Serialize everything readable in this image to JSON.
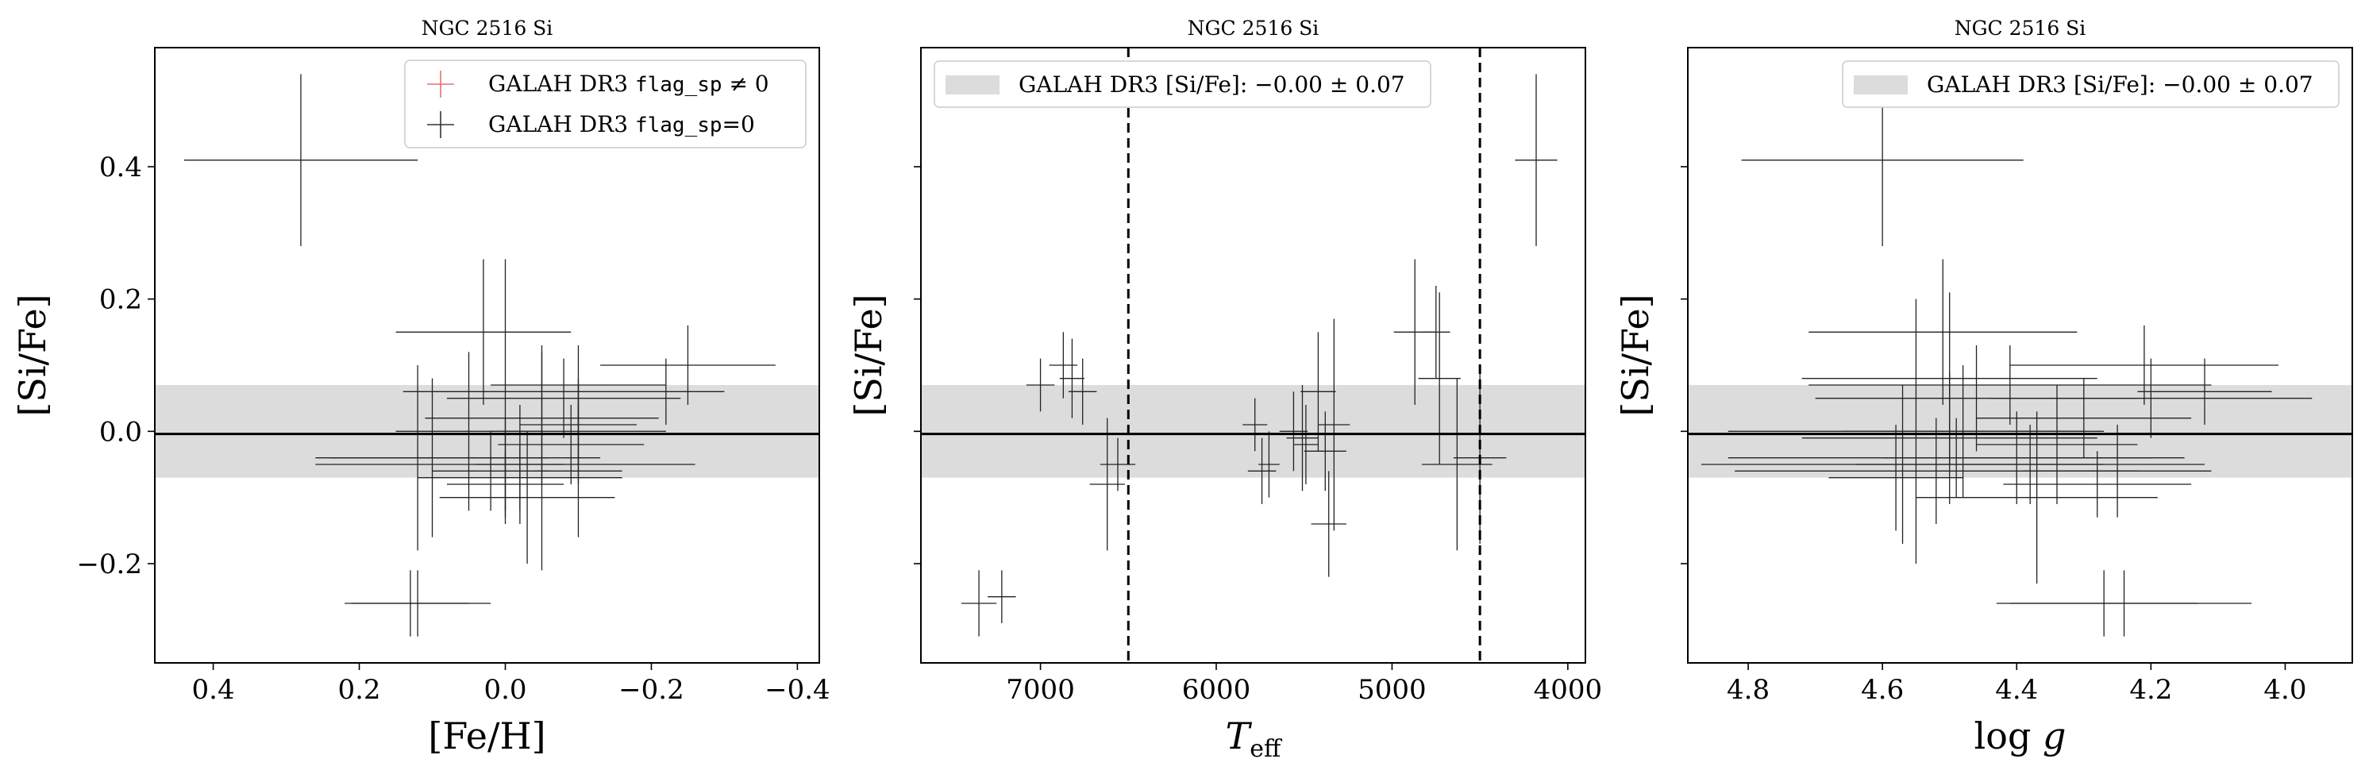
{
  "chart_data": [
    {
      "type": "scatter",
      "title": "NGC 2516 Si",
      "xlabel": "[Fe/H]",
      "ylabel": "[Si/Fe]",
      "xlim": [
        0.48,
        -0.43
      ],
      "ylim": [
        -0.35,
        0.58
      ],
      "x_inverted": true,
      "xticks": [
        0.4,
        0.2,
        0.0,
        -0.2,
        -0.4
      ],
      "xtick_labels": [
        "0.4",
        "0.2",
        "0.0",
        "−0.2",
        "−0.4"
      ],
      "yticks": [
        0.4,
        0.2,
        0.0,
        -0.2
      ],
      "ytick_labels": [
        "0.4",
        "0.2",
        "0.0",
        "−0.2"
      ],
      "band": {
        "center": -0.0,
        "halfwidth": 0.07,
        "color": "#dcdcdc"
      },
      "hline": -0.004,
      "legend": {
        "position": "top-right",
        "entries": [
          {
            "prefix": "GALAH DR3 ",
            "code": "flag_sp",
            "suffix": " ≠ 0",
            "color": "#e8706e"
          },
          {
            "prefix": "GALAH DR3 ",
            "code": "flag_sp",
            "suffix": "=0",
            "color": "#333333"
          }
        ]
      },
      "points": [
        {
          "x": 0.28,
          "y": 0.41,
          "xerr": 0.16,
          "yerr": 0.13
        },
        {
          "x": 0.12,
          "y": -0.26,
          "xerr": 0.1,
          "yerr": 0.05
        },
        {
          "x": 0.13,
          "y": -0.26,
          "xerr": 0.08,
          "yerr": 0.05
        },
        {
          "x": 0.03,
          "y": 0.15,
          "xerr": 0.12,
          "yerr": 0.11
        },
        {
          "x": -0.25,
          "y": 0.1,
          "xerr": 0.12,
          "yerr": 0.06
        },
        {
          "x": -0.22,
          "y": 0.06,
          "xerr": 0.08,
          "yerr": 0.05
        },
        {
          "x": -0.1,
          "y": 0.07,
          "xerr": 0.12,
          "yerr": 0.06
        },
        {
          "x": 0.0,
          "y": 0.06,
          "xerr": 0.14,
          "yerr": 0.2
        },
        {
          "x": -0.08,
          "y": 0.05,
          "xerr": 0.16,
          "yerr": 0.06
        },
        {
          "x": 0.05,
          "y": 0.0,
          "xerr": 0.1,
          "yerr": 0.12
        },
        {
          "x": -0.05,
          "y": 0.02,
          "xerr": 0.16,
          "yerr": 0.1
        },
        {
          "x": -0.1,
          "y": 0.0,
          "xerr": 0.12,
          "yerr": 0.08
        },
        {
          "x": -0.09,
          "y": -0.02,
          "xerr": 0.1,
          "yerr": 0.06
        },
        {
          "x": 0.0,
          "y": -0.05,
          "xerr": 0.26,
          "yerr": 0.07
        },
        {
          "x": 0.1,
          "y": -0.04,
          "xerr": 0.16,
          "yerr": 0.12
        },
        {
          "x": 0.02,
          "y": -0.06,
          "xerr": 0.08,
          "yerr": 0.06
        },
        {
          "x": -0.02,
          "y": -0.07,
          "xerr": 0.14,
          "yerr": 0.05
        },
        {
          "x": 0.0,
          "y": -0.08,
          "xerr": 0.08,
          "yerr": 0.05
        },
        {
          "x": -0.05,
          "y": -0.04,
          "xerr": 0.08,
          "yerr": 0.17
        },
        {
          "x": -0.1,
          "y": -0.06,
          "xerr": 0.06,
          "yerr": 0.1
        },
        {
          "x": -0.03,
          "y": -0.1,
          "xerr": 0.12,
          "yerr": 0.1
        },
        {
          "x": 0.12,
          "y": -0.04,
          "xerr": 0.12,
          "yerr": 0.14
        },
        {
          "x": -0.1,
          "y": 0.01,
          "xerr": 0.08,
          "yerr": 0.06
        },
        {
          "x": -0.02,
          "y": -0.05,
          "xerr": 0.06,
          "yerr": 0.09
        }
      ]
    },
    {
      "type": "scatter",
      "title": "NGC 2516 Si",
      "xlabel": "T_eff",
      "ylabel": "[Si/Fe]",
      "xlim": [
        7680,
        3900
      ],
      "ylim": [
        -0.35,
        0.58
      ],
      "x_inverted": true,
      "xticks": [
        7000,
        6000,
        5000,
        4000
      ],
      "xtick_labels": [
        "7000",
        "6000",
        "5000",
        "4000"
      ],
      "yticks": [
        0.4,
        0.2,
        0.0,
        -0.2
      ],
      "ytick_labels": [
        "",
        "",
        "",
        ""
      ],
      "band": {
        "center": -0.0,
        "halfwidth": 0.07,
        "color": "#dcdcdc"
      },
      "hline": -0.004,
      "vlines": [
        6500,
        4500
      ],
      "legend": {
        "position": "top-left",
        "entries": [
          {
            "text": "GALAH DR3 [Si/Fe]: −0.00 ± 0.07",
            "color": "#dcdcdc",
            "kind": "patch"
          }
        ]
      },
      "points": [
        {
          "x": 4180,
          "y": 0.41,
          "xerr": 120,
          "yerr": 0.13
        },
        {
          "x": 7350,
          "y": -0.26,
          "xerr": 100,
          "yerr": 0.05
        },
        {
          "x": 7220,
          "y": -0.25,
          "xerr": 80,
          "yerr": 0.04
        },
        {
          "x": 7000,
          "y": 0.07,
          "xerr": 80,
          "yerr": 0.04
        },
        {
          "x": 6870,
          "y": 0.1,
          "xerr": 80,
          "yerr": 0.05
        },
        {
          "x": 6820,
          "y": 0.08,
          "xerr": 70,
          "yerr": 0.06
        },
        {
          "x": 6760,
          "y": 0.06,
          "xerr": 80,
          "yerr": 0.05
        },
        {
          "x": 6620,
          "y": -0.08,
          "xerr": 100,
          "yerr": 0.1
        },
        {
          "x": 6560,
          "y": -0.05,
          "xerr": 100,
          "yerr": 0.04
        },
        {
          "x": 5780,
          "y": 0.01,
          "xerr": 70,
          "yerr": 0.04
        },
        {
          "x": 5740,
          "y": -0.06,
          "xerr": 80,
          "yerr": 0.05
        },
        {
          "x": 5700,
          "y": -0.05,
          "xerr": 60,
          "yerr": 0.05
        },
        {
          "x": 5560,
          "y": 0.0,
          "xerr": 80,
          "yerr": 0.06
        },
        {
          "x": 5510,
          "y": -0.01,
          "xerr": 90,
          "yerr": 0.08
        },
        {
          "x": 5490,
          "y": -0.02,
          "xerr": 70,
          "yerr": 0.06
        },
        {
          "x": 5420,
          "y": 0.06,
          "xerr": 100,
          "yerr": 0.09
        },
        {
          "x": 5380,
          "y": -0.03,
          "xerr": 120,
          "yerr": 0.06
        },
        {
          "x": 5360,
          "y": -0.14,
          "xerr": 100,
          "yerr": 0.08
        },
        {
          "x": 5330,
          "y": 0.01,
          "xerr": 90,
          "yerr": 0.16
        },
        {
          "x": 4870,
          "y": 0.15,
          "xerr": 120,
          "yerr": 0.11
        },
        {
          "x": 4750,
          "y": 0.15,
          "xerr": 80,
          "yerr": 0.07
        },
        {
          "x": 4730,
          "y": 0.08,
          "xerr": 120,
          "yerr": 0.13
        },
        {
          "x": 4630,
          "y": -0.05,
          "xerr": 200,
          "yerr": 0.13
        },
        {
          "x": 4500,
          "y": -0.04,
          "xerr": 150,
          "yerr": 0.13
        }
      ]
    },
    {
      "type": "scatter",
      "title": "NGC 2516 Si",
      "xlabel": "log g",
      "ylabel": "[Si/Fe]",
      "xlim": [
        4.89,
        3.9
      ],
      "ylim": [
        -0.35,
        0.58
      ],
      "x_inverted": true,
      "xticks": [
        4.8,
        4.6,
        4.4,
        4.2,
        4.0
      ],
      "xtick_labels": [
        "4.8",
        "4.6",
        "4.4",
        "4.2",
        "4.0"
      ],
      "yticks": [
        0.4,
        0.2,
        0.0,
        -0.2
      ],
      "ytick_labels": [
        "",
        "",
        "",
        ""
      ],
      "band": {
        "center": -0.0,
        "halfwidth": 0.07,
        "color": "#dcdcdc"
      },
      "hline": -0.004,
      "legend": {
        "position": "top-right",
        "entries": [
          {
            "text": "GALAH DR3 [Si/Fe]: −0.00 ± 0.07",
            "color": "#dcdcdc",
            "kind": "patch"
          }
        ]
      },
      "points": [
        {
          "x": 4.6,
          "y": 0.41,
          "xerr": 0.21,
          "yerr": 0.13
        },
        {
          "x": 4.27,
          "y": -0.26,
          "xerr": 0.14,
          "yerr": 0.05
        },
        {
          "x": 4.24,
          "y": -0.26,
          "xerr": 0.19,
          "yerr": 0.05
        },
        {
          "x": 4.51,
          "y": 0.15,
          "xerr": 0.2,
          "yerr": 0.11
        },
        {
          "x": 4.21,
          "y": 0.1,
          "xerr": 0.2,
          "yerr": 0.06
        },
        {
          "x": 4.12,
          "y": 0.06,
          "xerr": 0.1,
          "yerr": 0.05
        },
        {
          "x": 4.5,
          "y": 0.08,
          "xerr": 0.22,
          "yerr": 0.13
        },
        {
          "x": 4.41,
          "y": 0.07,
          "xerr": 0.3,
          "yerr": 0.06
        },
        {
          "x": 4.46,
          "y": 0.05,
          "xerr": 0.24,
          "yerr": 0.08
        },
        {
          "x": 4.2,
          "y": 0.05,
          "xerr": 0.24,
          "yerr": 0.06
        },
        {
          "x": 4.55,
          "y": 0.0,
          "xerr": 0.28,
          "yerr": 0.2
        },
        {
          "x": 4.5,
          "y": -0.01,
          "xerr": 0.22,
          "yerr": 0.1
        },
        {
          "x": 4.48,
          "y": 0.0,
          "xerr": 0.18,
          "yerr": 0.1
        },
        {
          "x": 4.57,
          "y": -0.05,
          "xerr": 0.3,
          "yerr": 0.12
        },
        {
          "x": 4.52,
          "y": -0.06,
          "xerr": 0.3,
          "yerr": 0.08
        },
        {
          "x": 4.49,
          "y": -0.04,
          "xerr": 0.34,
          "yerr": 0.06
        },
        {
          "x": 4.38,
          "y": -0.05,
          "xerr": 0.26,
          "yerr": 0.06
        },
        {
          "x": 4.28,
          "y": -0.08,
          "xerr": 0.14,
          "yerr": 0.05
        },
        {
          "x": 4.37,
          "y": -0.1,
          "xerr": 0.18,
          "yerr": 0.13
        },
        {
          "x": 4.4,
          "y": -0.04,
          "xerr": 0.2,
          "yerr": 0.07
        },
        {
          "x": 4.25,
          "y": -0.06,
          "xerr": 0.14,
          "yerr": 0.07
        },
        {
          "x": 4.58,
          "y": -0.07,
          "xerr": 0.1,
          "yerr": 0.08
        },
        {
          "x": 4.3,
          "y": 0.02,
          "xerr": 0.16,
          "yerr": 0.06
        },
        {
          "x": 4.34,
          "y": -0.02,
          "xerr": 0.12,
          "yerr": 0.09
        }
      ]
    }
  ]
}
